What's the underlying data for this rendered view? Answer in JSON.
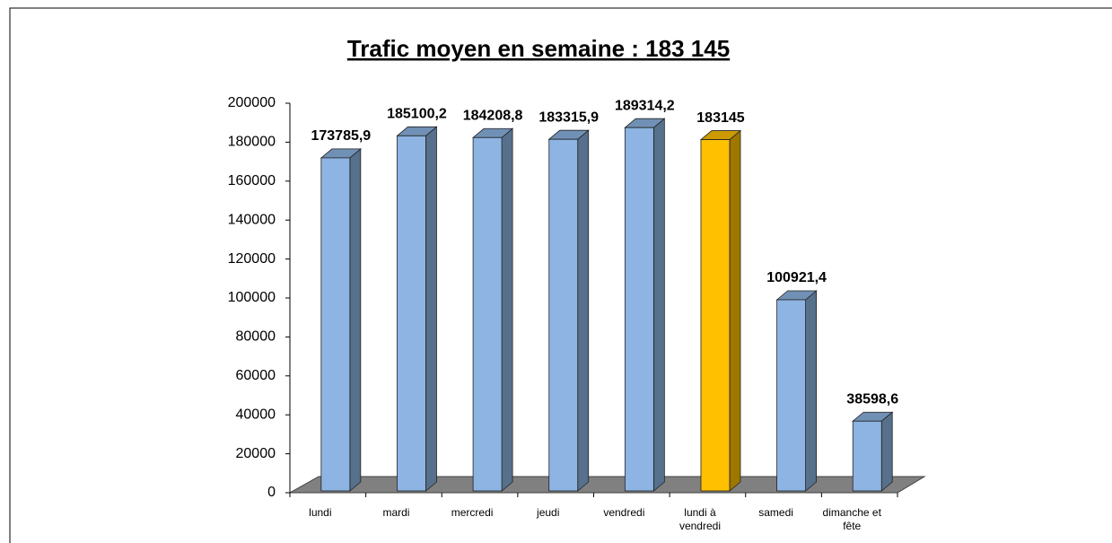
{
  "chart_data": {
    "type": "bar3d",
    "title": "Trafic moyen en semaine : 183 145",
    "categories": [
      "lundi",
      "mardi",
      "mercredi",
      "jeudi",
      "vendredi",
      "lundi à vendredi",
      "samedi",
      "dimanche et fête"
    ],
    "values": [
      173785.9,
      185100.2,
      184208.8,
      183315.9,
      189314.2,
      183145,
      100921.4,
      38598.6
    ],
    "value_labels": [
      "173785,9",
      "185100,2",
      "184208,8",
      "183315,9",
      "189314,2",
      "183145",
      "100921,4",
      "38598,6"
    ],
    "colors": [
      "#8db4e2",
      "#8db4e2",
      "#8db4e2",
      "#8db4e2",
      "#8db4e2",
      "#ffc000",
      "#8db4e2",
      "#8db4e2"
    ],
    "ylim": [
      0,
      200000
    ],
    "yticks": [
      0,
      20000,
      40000,
      60000,
      80000,
      100000,
      120000,
      140000,
      160000,
      180000,
      200000
    ]
  }
}
